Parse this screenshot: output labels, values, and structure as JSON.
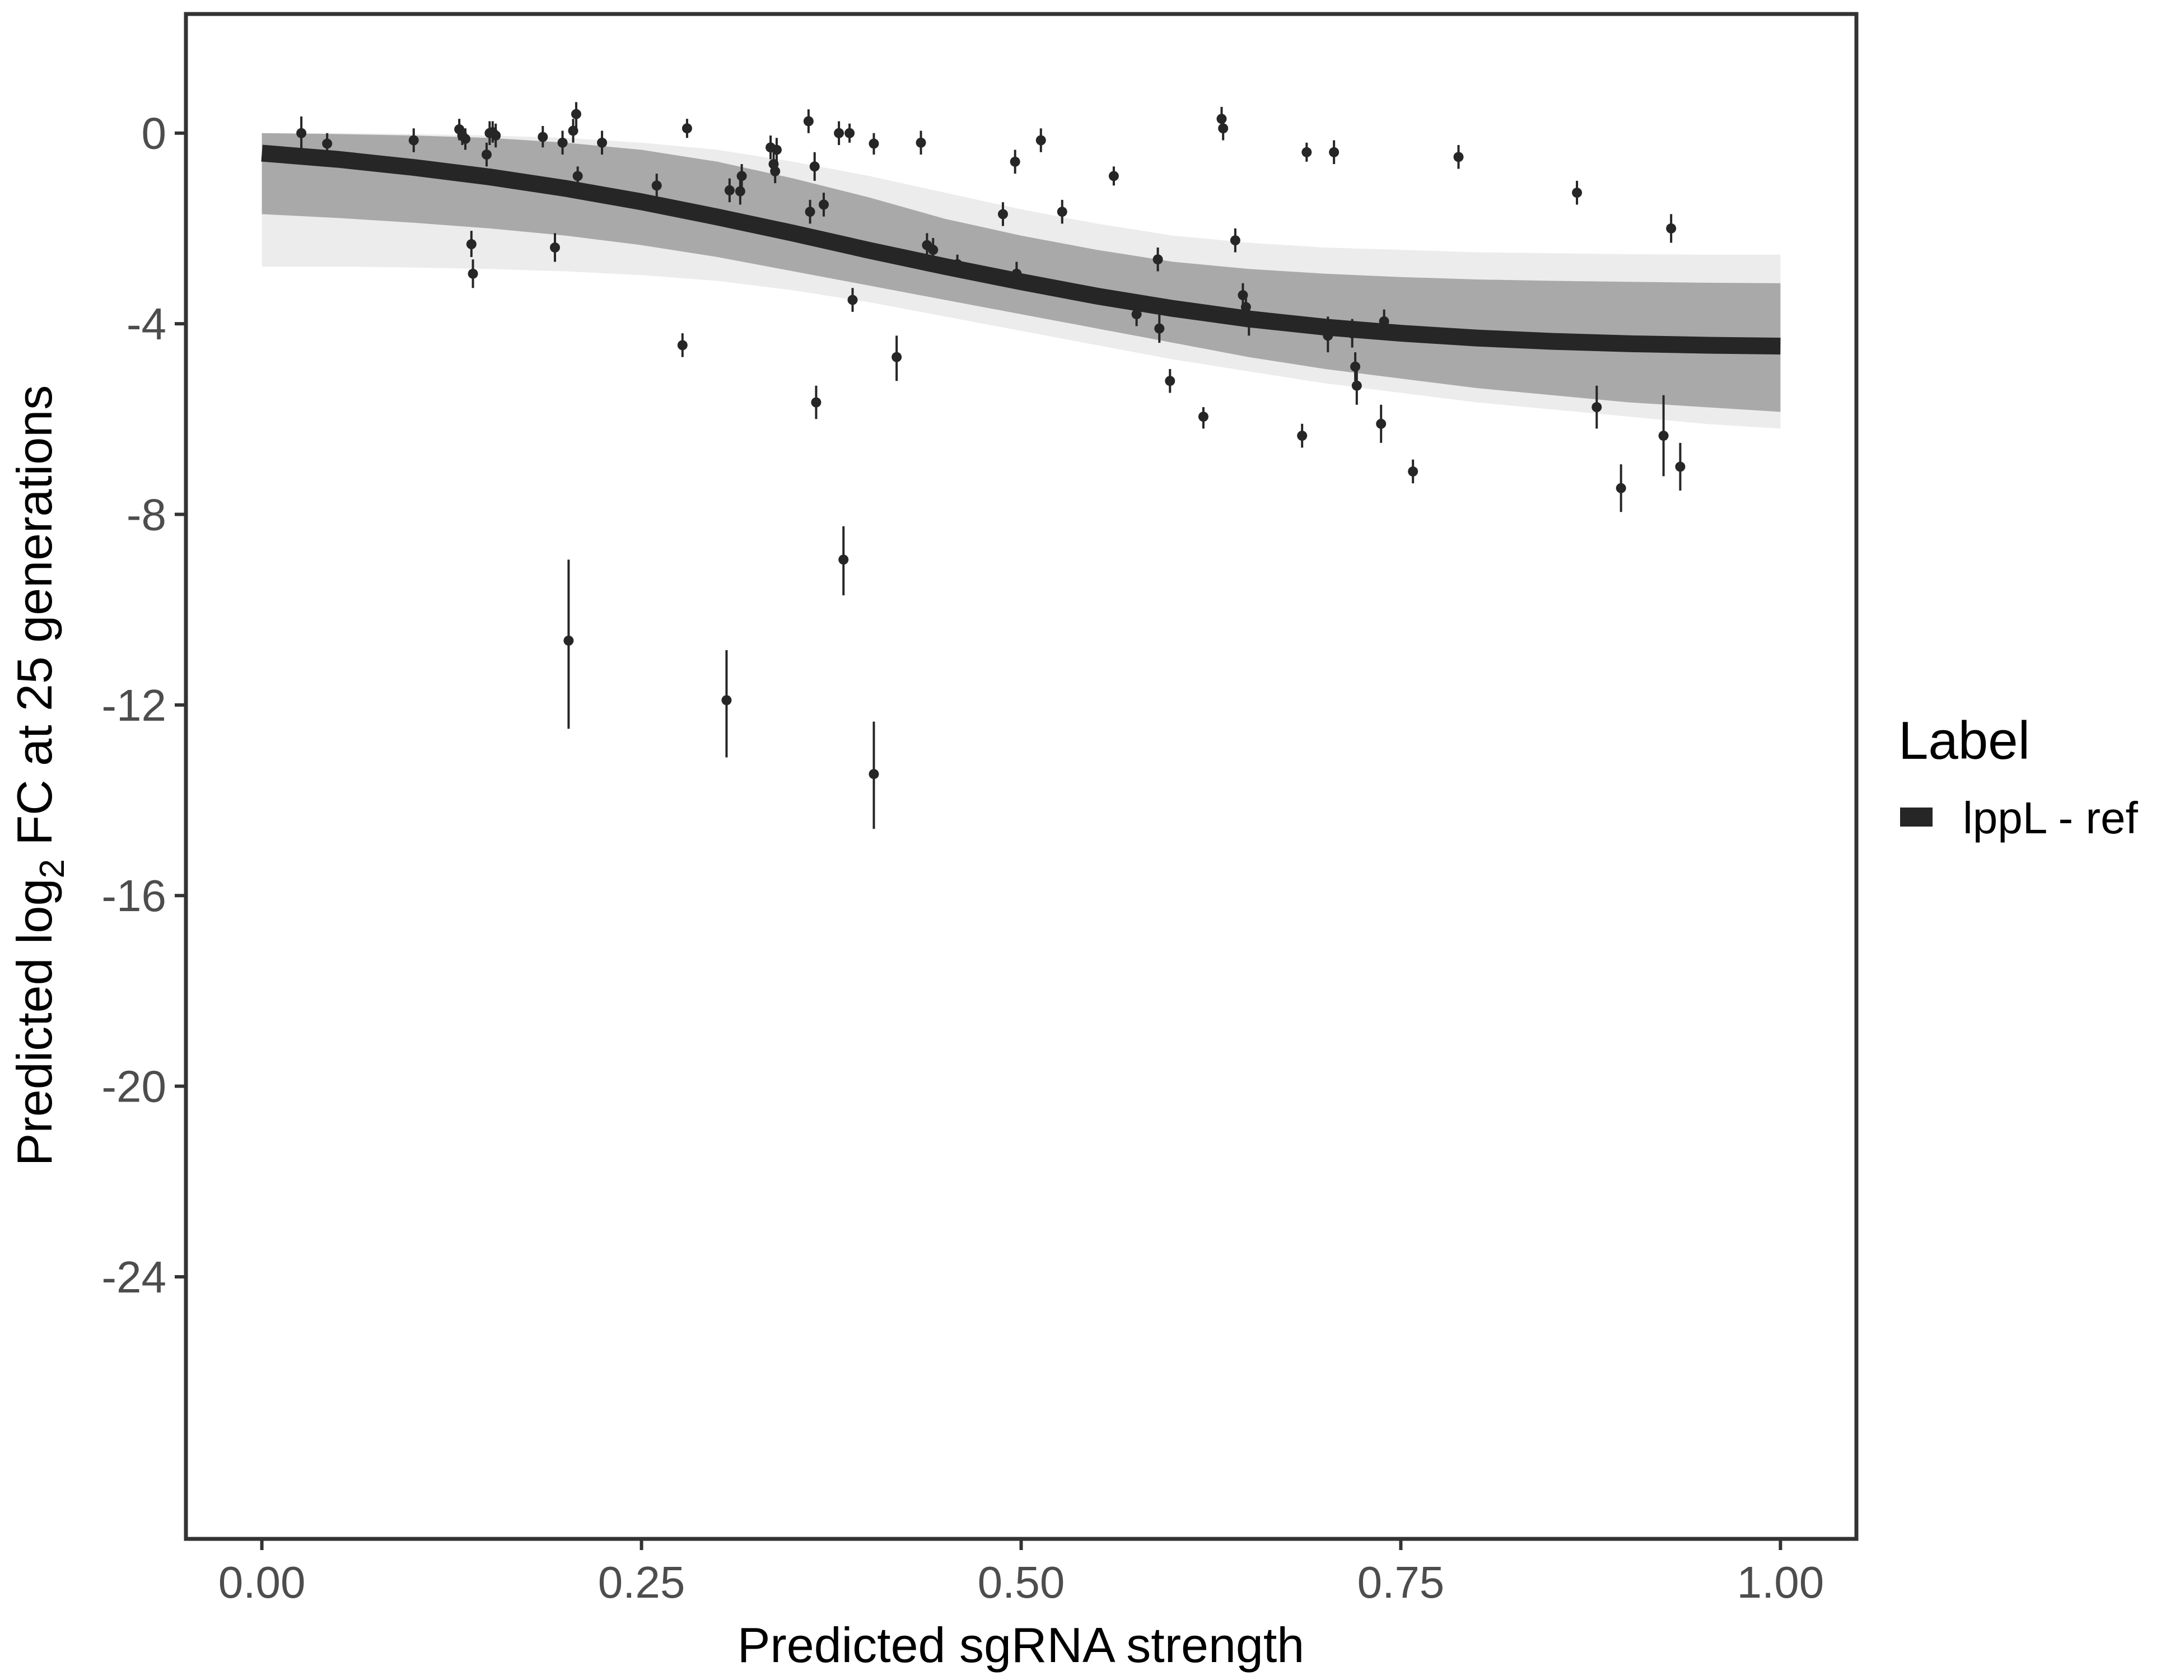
{
  "chart_data": {
    "type": "scatter",
    "xlabel": "Predicted sgRNA strength",
    "ylabel_parts": {
      "before": "Predicted  log",
      "subscript": "2",
      "after": " FC at 25 generations"
    },
    "xlim": [
      -0.05,
      1.05
    ],
    "ylim": [
      -29.5,
      2.5
    ],
    "x_ticks": [
      0.0,
      0.25,
      0.5,
      0.75,
      1.0
    ],
    "x_tick_labels": [
      "0.00",
      "0.25",
      "0.50",
      "0.75",
      "1.00"
    ],
    "y_ticks": [
      0,
      -4,
      -8,
      -12,
      -16,
      -20,
      -24
    ],
    "y_tick_labels": [
      "0",
      "-4",
      "-8",
      "-12",
      "-16",
      "-20",
      "-24"
    ],
    "grid": false,
    "legend": {
      "title": "Label",
      "position": "right",
      "entries": [
        {
          "label": "lppL - ref",
          "color": "#262626"
        }
      ]
    },
    "fit": {
      "name": "lppL - ref",
      "x": [
        0.0,
        0.05,
        0.1,
        0.15,
        0.2,
        0.25,
        0.3,
        0.35,
        0.4,
        0.45,
        0.5,
        0.55,
        0.6,
        0.65,
        0.7,
        0.75,
        0.8,
        0.85,
        0.9,
        0.95,
        1.0
      ],
      "y": [
        -0.42,
        -0.55,
        -0.72,
        -0.92,
        -1.16,
        -1.44,
        -1.76,
        -2.1,
        -2.46,
        -2.8,
        -3.12,
        -3.42,
        -3.68,
        -3.9,
        -4.07,
        -4.2,
        -4.3,
        -4.37,
        -4.42,
        -4.45,
        -4.47
      ],
      "band_upper": [
        0.0,
        -0.02,
        -0.05,
        -0.1,
        -0.2,
        -0.35,
        -0.6,
        -0.95,
        -1.35,
        -1.8,
        -2.15,
        -2.45,
        -2.7,
        -2.85,
        -2.95,
        -3.02,
        -3.07,
        -3.1,
        -3.12,
        -3.14,
        -3.15
      ],
      "band_lower": [
        -1.7,
        -1.78,
        -1.88,
        -2.0,
        -2.15,
        -2.35,
        -2.6,
        -2.9,
        -3.2,
        -3.5,
        -3.8,
        -4.1,
        -4.4,
        -4.7,
        -4.95,
        -5.15,
        -5.35,
        -5.5,
        -5.65,
        -5.75,
        -5.85
      ],
      "outer_upper": [
        0.0,
        0.0,
        -0.02,
        -0.05,
        -0.1,
        -0.2,
        -0.35,
        -0.6,
        -0.9,
        -1.25,
        -1.6,
        -1.9,
        -2.15,
        -2.3,
        -2.4,
        -2.45,
        -2.5,
        -2.52,
        -2.54,
        -2.55,
        -2.55
      ],
      "outer_lower": [
        -2.8,
        -2.8,
        -2.82,
        -2.85,
        -2.9,
        -2.98,
        -3.1,
        -3.3,
        -3.55,
        -3.85,
        -4.15,
        -4.45,
        -4.75,
        -5.0,
        -5.25,
        -5.45,
        -5.65,
        -5.8,
        -5.95,
        -6.1,
        -6.2
      ]
    },
    "points": [
      {
        "x": 0.026,
        "y": 0.0,
        "lo": -0.35,
        "hi": 0.35
      },
      {
        "x": 0.043,
        "y": -0.22,
        "lo": -0.45,
        "hi": 0.0
      },
      {
        "x": 0.1,
        "y": -0.15,
        "lo": -0.4,
        "hi": 0.1
      },
      {
        "x": 0.13,
        "y": 0.08,
        "lo": -0.15,
        "hi": 0.3
      },
      {
        "x": 0.132,
        "y": -0.05,
        "lo": -0.25,
        "hi": 0.15
      },
      {
        "x": 0.134,
        "y": -0.12,
        "lo": -0.35,
        "hi": 0.1
      },
      {
        "x": 0.138,
        "y": -2.33,
        "lo": -2.6,
        "hi": -2.05
      },
      {
        "x": 0.139,
        "y": -2.95,
        "lo": -3.25,
        "hi": -2.65
      },
      {
        "x": 0.148,
        "y": -0.45,
        "lo": -0.7,
        "hi": -0.2
      },
      {
        "x": 0.15,
        "y": 0.0,
        "lo": -0.25,
        "hi": 0.25
      },
      {
        "x": 0.152,
        "y": 0.02,
        "lo": -0.2,
        "hi": 0.25
      },
      {
        "x": 0.154,
        "y": -0.05,
        "lo": -0.3,
        "hi": 0.2
      },
      {
        "x": 0.185,
        "y": -0.08,
        "lo": -0.3,
        "hi": 0.15
      },
      {
        "x": 0.193,
        "y": -2.4,
        "lo": -2.7,
        "hi": -2.1
      },
      {
        "x": 0.198,
        "y": -0.2,
        "lo": -0.45,
        "hi": 0.05
      },
      {
        "x": 0.202,
        "y": -10.65,
        "lo": -12.5,
        "hi": -8.95
      },
      {
        "x": 0.205,
        "y": 0.05,
        "lo": -0.2,
        "hi": 0.3
      },
      {
        "x": 0.207,
        "y": 0.4,
        "lo": 0.1,
        "hi": 0.65
      },
      {
        "x": 0.208,
        "y": -0.9,
        "lo": -1.1,
        "hi": -0.7
      },
      {
        "x": 0.224,
        "y": -0.2,
        "lo": -0.45,
        "hi": 0.05
      },
      {
        "x": 0.26,
        "y": -1.1,
        "lo": -1.35,
        "hi": -0.85
      },
      {
        "x": 0.277,
        "y": -4.45,
        "lo": -4.7,
        "hi": -4.2
      },
      {
        "x": 0.28,
        "y": 0.1,
        "lo": -0.1,
        "hi": 0.3
      },
      {
        "x": 0.306,
        "y": -11.9,
        "lo": -13.1,
        "hi": -10.85
      },
      {
        "x": 0.308,
        "y": -1.2,
        "lo": -1.45,
        "hi": -0.95
      },
      {
        "x": 0.315,
        "y": -1.22,
        "lo": -1.5,
        "hi": -0.95
      },
      {
        "x": 0.316,
        "y": -0.9,
        "lo": -1.15,
        "hi": -0.65
      },
      {
        "x": 0.335,
        "y": -0.3,
        "lo": -0.55,
        "hi": -0.05
      },
      {
        "x": 0.337,
        "y": -0.65,
        "lo": -0.9,
        "hi": -0.4
      },
      {
        "x": 0.338,
        "y": -0.8,
        "lo": -1.05,
        "hi": -0.55
      },
      {
        "x": 0.339,
        "y": -0.35,
        "lo": -0.6,
        "hi": -0.1
      },
      {
        "x": 0.36,
        "y": 0.25,
        "lo": 0.0,
        "hi": 0.5
      },
      {
        "x": 0.361,
        "y": -1.65,
        "lo": -1.9,
        "hi": -1.4
      },
      {
        "x": 0.364,
        "y": -0.7,
        "lo": -1.0,
        "hi": -0.4
      },
      {
        "x": 0.365,
        "y": -5.65,
        "lo": -6.0,
        "hi": -5.3
      },
      {
        "x": 0.37,
        "y": -1.5,
        "lo": -1.75,
        "hi": -1.25
      },
      {
        "x": 0.38,
        "y": 0.0,
        "lo": -0.25,
        "hi": 0.25
      },
      {
        "x": 0.383,
        "y": -8.95,
        "lo": -9.7,
        "hi": -8.25
      },
      {
        "x": 0.387,
        "y": 0.0,
        "lo": -0.2,
        "hi": 0.2
      },
      {
        "x": 0.389,
        "y": -3.5,
        "lo": -3.75,
        "hi": -3.25
      },
      {
        "x": 0.403,
        "y": -13.45,
        "lo": -14.6,
        "hi": -12.35
      },
      {
        "x": 0.403,
        "y": -0.22,
        "lo": -0.45,
        "hi": 0.0
      },
      {
        "x": 0.418,
        "y": -4.7,
        "lo": -5.2,
        "hi": -4.25
      },
      {
        "x": 0.434,
        "y": -0.2,
        "lo": -0.45,
        "hi": 0.05
      },
      {
        "x": 0.438,
        "y": -2.35,
        "lo": -2.6,
        "hi": -2.1
      },
      {
        "x": 0.442,
        "y": -2.45,
        "lo": -2.7,
        "hi": -2.2
      },
      {
        "x": 0.458,
        "y": -2.75,
        "lo": -2.95,
        "hi": -2.55
      },
      {
        "x": 0.488,
        "y": -1.7,
        "lo": -1.95,
        "hi": -1.45
      },
      {
        "x": 0.496,
        "y": -0.6,
        "lo": -0.85,
        "hi": -0.35
      },
      {
        "x": 0.497,
        "y": -2.95,
        "lo": -3.2,
        "hi": -2.7
      },
      {
        "x": 0.513,
        "y": -0.15,
        "lo": -0.4,
        "hi": 0.1
      },
      {
        "x": 0.527,
        "y": -1.65,
        "lo": -1.9,
        "hi": -1.4
      },
      {
        "x": 0.561,
        "y": -0.9,
        "lo": -1.1,
        "hi": -0.7
      },
      {
        "x": 0.576,
        "y": -3.8,
        "lo": -4.05,
        "hi": -3.55
      },
      {
        "x": 0.59,
        "y": -2.65,
        "lo": -2.9,
        "hi": -2.4
      },
      {
        "x": 0.591,
        "y": -4.1,
        "lo": -4.4,
        "hi": -3.8
      },
      {
        "x": 0.598,
        "y": -5.2,
        "lo": -5.45,
        "hi": -4.95
      },
      {
        "x": 0.62,
        "y": -5.95,
        "lo": -6.2,
        "hi": -5.75
      },
      {
        "x": 0.632,
        "y": 0.3,
        "lo": 0.05,
        "hi": 0.55
      },
      {
        "x": 0.633,
        "y": 0.1,
        "lo": -0.15,
        "hi": 0.35
      },
      {
        "x": 0.641,
        "y": -2.25,
        "lo": -2.5,
        "hi": -2.0
      },
      {
        "x": 0.646,
        "y": -3.4,
        "lo": -3.65,
        "hi": -3.15
      },
      {
        "x": 0.648,
        "y": -3.65,
        "lo": -3.9,
        "hi": -3.4
      },
      {
        "x": 0.65,
        "y": -3.95,
        "lo": -4.25,
        "hi": -3.7
      },
      {
        "x": 0.685,
        "y": -6.35,
        "lo": -6.6,
        "hi": -6.1
      },
      {
        "x": 0.688,
        "y": -0.4,
        "lo": -0.6,
        "hi": -0.2
      },
      {
        "x": 0.702,
        "y": -4.25,
        "lo": -4.6,
        "hi": -3.85
      },
      {
        "x": 0.706,
        "y": -0.4,
        "lo": -0.65,
        "hi": -0.15
      },
      {
        "x": 0.718,
        "y": -4.2,
        "lo": -4.5,
        "hi": -3.9
      },
      {
        "x": 0.72,
        "y": -4.9,
        "lo": -5.2,
        "hi": -4.6
      },
      {
        "x": 0.721,
        "y": -5.3,
        "lo": -5.7,
        "hi": -4.9
      },
      {
        "x": 0.737,
        "y": -6.1,
        "lo": -6.5,
        "hi": -5.7
      },
      {
        "x": 0.739,
        "y": -3.95,
        "lo": -4.2,
        "hi": -3.7
      },
      {
        "x": 0.758,
        "y": -7.1,
        "lo": -7.35,
        "hi": -6.85
      },
      {
        "x": 0.788,
        "y": -0.5,
        "lo": -0.75,
        "hi": -0.25
      },
      {
        "x": 0.866,
        "y": -1.25,
        "lo": -1.5,
        "hi": -1.0
      },
      {
        "x": 0.879,
        "y": -5.75,
        "lo": -6.2,
        "hi": -5.3
      },
      {
        "x": 0.895,
        "y": -7.45,
        "lo": -7.95,
        "hi": -6.95
      },
      {
        "x": 0.923,
        "y": -6.35,
        "lo": -7.2,
        "hi": -5.5
      },
      {
        "x": 0.928,
        "y": -2.0,
        "lo": -2.3,
        "hi": -1.7
      },
      {
        "x": 0.934,
        "y": -7.0,
        "lo": -7.5,
        "hi": -6.5
      }
    ]
  }
}
